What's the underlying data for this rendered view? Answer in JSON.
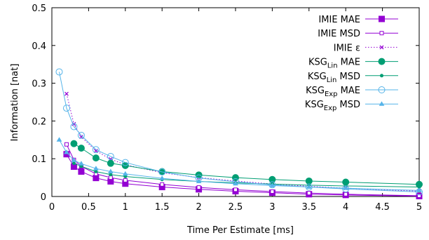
{
  "chart_data": {
    "type": "line",
    "title": "",
    "xlabel": "Time Per Estimate [ms]",
    "ylabel": "Information [nat]",
    "xlim": [
      0,
      5
    ],
    "ylim": [
      0,
      0.5
    ],
    "xticks": [
      0,
      0.5,
      1,
      1.5,
      2,
      2.5,
      3,
      3.5,
      4,
      4.5,
      5
    ],
    "xtick_labels": [
      "0",
      "0.5",
      "1",
      "1.5",
      "2",
      "2.5",
      "3",
      "3.5",
      "4",
      "4.5",
      "5"
    ],
    "yticks": [
      0,
      0.1,
      0.2,
      0.3,
      0.4,
      0.5
    ],
    "ytick_labels": [
      "0",
      "0.1",
      "0.2",
      "0.3",
      "0.4",
      "0.5"
    ],
    "grid": false,
    "legend_position": "top-right",
    "series": [
      {
        "name": "IMIE MAE",
        "legend_main": "IMIE MAE",
        "legend_sub": "",
        "legend_tail": "",
        "color": "#9400d3",
        "marker": "filled-square",
        "dash": "solid",
        "x": [
          0.2,
          0.3,
          0.4,
          0.6,
          0.8,
          1.0,
          1.5,
          2.0,
          2.5,
          3.0,
          3.5,
          4.0,
          5.0
        ],
        "y": [
          0.112,
          0.079,
          0.066,
          0.049,
          0.04,
          0.034,
          0.025,
          0.019,
          0.014,
          0.01,
          0.006,
          0.004,
          0.001
        ]
      },
      {
        "name": "IMIE MSD",
        "legend_main": "IMIE MSD",
        "legend_sub": "",
        "legend_tail": "",
        "color": "#9400d3",
        "marker": "open-square",
        "dash": "solid",
        "x": [
          0.2,
          0.3,
          0.4,
          0.6,
          0.8,
          1.0,
          1.5,
          2.0,
          2.5,
          3.0,
          3.5,
          4.0,
          5.0
        ],
        "y": [
          0.138,
          0.097,
          0.08,
          0.06,
          0.05,
          0.043,
          0.032,
          0.024,
          0.018,
          0.013,
          0.009,
          0.006,
          0.002
        ]
      },
      {
        "name": "IMIE ε",
        "legend_main": "IMIE ε",
        "legend_sub": "",
        "legend_tail": "",
        "color": "#9400d3",
        "marker": "cross",
        "dash": "dotted",
        "x": [
          0.2,
          0.3,
          0.4,
          0.6,
          0.8,
          1.0,
          1.5,
          2.0,
          2.5,
          3.0,
          3.5,
          4.0,
          5.0
        ],
        "y": [
          0.272,
          0.192,
          0.158,
          0.121,
          0.099,
          0.084,
          0.063,
          0.05,
          0.041,
          0.033,
          0.027,
          0.022,
          0.014
        ]
      },
      {
        "name": "KSGLin MAE",
        "legend_main": "KSG",
        "legend_sub": "Lin",
        "legend_tail": " MAE",
        "color": "#009e73",
        "marker": "filled-circle",
        "dash": "solid",
        "x": [
          0.3,
          0.4,
          0.6,
          0.8,
          1.0,
          1.5,
          2.0,
          2.5,
          3.0,
          3.5,
          4.0,
          5.0
        ],
        "y": [
          0.14,
          0.128,
          0.102,
          0.088,
          0.082,
          0.066,
          0.057,
          0.05,
          0.045,
          0.041,
          0.038,
          0.032
        ]
      },
      {
        "name": "KSGLin MSD",
        "legend_main": "KSG",
        "legend_sub": "Lin",
        "legend_tail": " MSD",
        "color": "#009e73",
        "marker": "small-dot",
        "dash": "solid",
        "x": [
          0.3,
          0.4,
          0.6,
          0.8,
          1.0,
          1.5,
          2.0,
          2.5,
          3.0,
          3.5,
          4.0,
          5.0
        ],
        "y": [
          0.088,
          0.08,
          0.066,
          0.058,
          0.053,
          0.045,
          0.04,
          0.036,
          0.033,
          0.03,
          0.028,
          0.025
        ]
      },
      {
        "name": "KSGExp MAE",
        "legend_main": "KSG",
        "legend_sub": "Exp",
        "legend_tail": " MAE",
        "color": "#56b4e9",
        "marker": "open-circle",
        "dash": "solid",
        "x": [
          0.1,
          0.2,
          0.3,
          0.4,
          0.6,
          0.8,
          1.0,
          1.5,
          2.0,
          2.5,
          3.0,
          3.5,
          4.0,
          5.0
        ],
        "y": [
          0.33,
          0.234,
          0.185,
          0.162,
          0.124,
          0.106,
          0.09,
          0.065,
          0.049,
          0.039,
          0.031,
          0.025,
          0.02,
          0.012
        ]
      },
      {
        "name": "KSGExp MSD",
        "legend_main": "KSG",
        "legend_sub": "Exp",
        "legend_tail": " MSD",
        "color": "#56b4e9",
        "marker": "triangle",
        "dash": "solid",
        "x": [
          0.1,
          0.2,
          0.3,
          0.4,
          0.6,
          0.8,
          1.0,
          1.5,
          2.0,
          2.5,
          3.0,
          3.5,
          4.0,
          5.0
        ],
        "y": [
          0.15,
          0.117,
          0.096,
          0.087,
          0.074,
          0.066,
          0.06,
          0.048,
          0.04,
          0.034,
          0.029,
          0.025,
          0.022,
          0.016
        ]
      }
    ]
  }
}
